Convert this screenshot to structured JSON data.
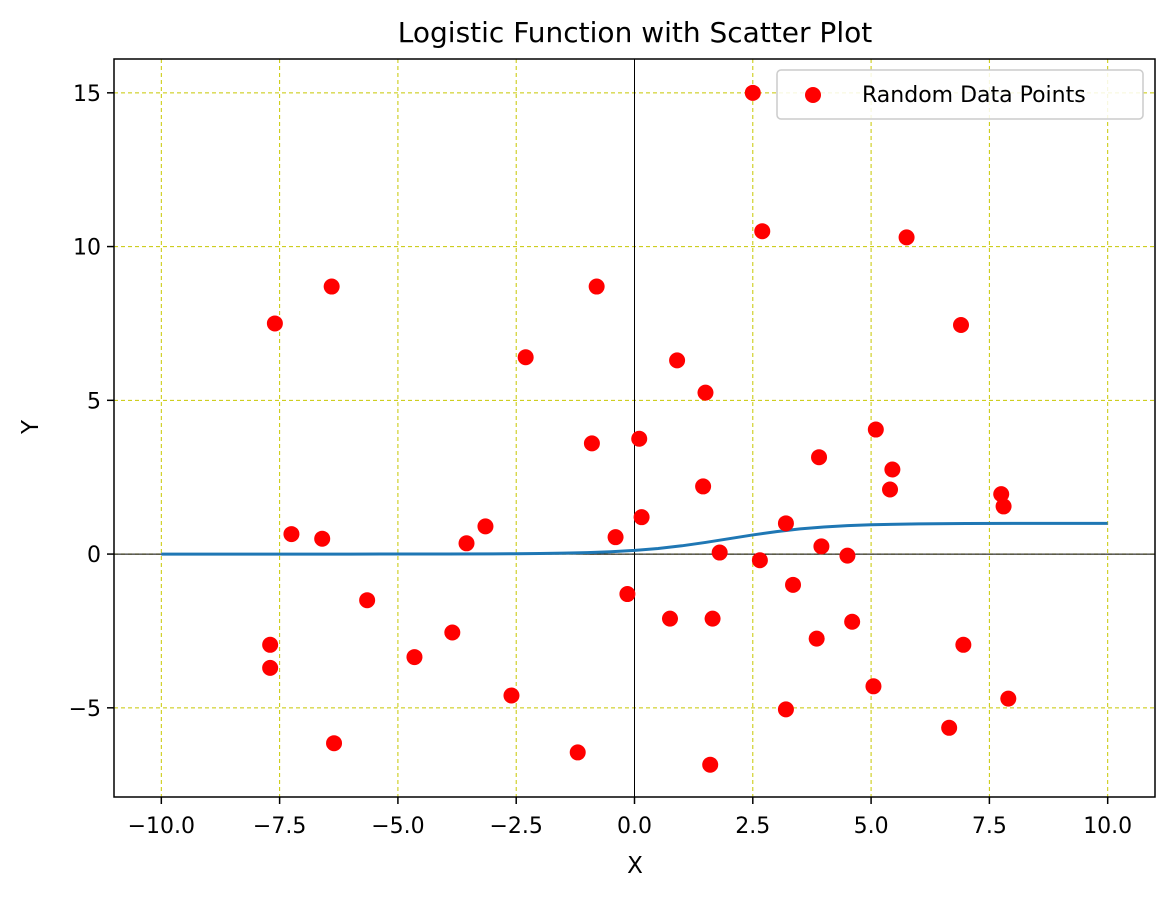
{
  "chart_data": {
    "type": "scatter",
    "title": "Logistic Function with Scatter Plot",
    "xlabel": "X",
    "ylabel": "Y",
    "xlim": [
      -11.0,
      11.0
    ],
    "ylim": [
      -7.9,
      16.1
    ],
    "xticks": [
      -10.0,
      -7.5,
      -5.0,
      -2.5,
      0.0,
      2.5,
      5.0,
      7.5,
      10.0
    ],
    "xtick_labels": [
      "−10.0",
      "−7.5",
      "−5.0",
      "−2.5",
      "0.0",
      "2.5",
      "5.0",
      "7.5",
      "10.0"
    ],
    "yticks": [
      -5,
      0,
      5,
      10,
      15
    ],
    "ytick_labels": [
      "−5",
      "0",
      "5",
      "10",
      "15"
    ],
    "grid": true,
    "grid_color": "#c8c800",
    "legend": {
      "position": "top-right",
      "entries": [
        "Random Data Points"
      ]
    },
    "series": [
      {
        "kind": "line",
        "function": "logistic",
        "x": [
          -10,
          -9,
          -8,
          -7,
          -6,
          -5,
          -4,
          -3,
          -2.5,
          -2,
          -1.5,
          -1,
          -0.5,
          0,
          0.5,
          1,
          1.5,
          2,
          2.5,
          3,
          3.5,
          4,
          4.5,
          5,
          6,
          7,
          8,
          9,
          10
        ],
        "y": [
          0.0,
          0.0,
          0.0,
          0.0,
          0.0,
          0.001,
          0.003,
          0.007,
          0.012,
          0.018,
          0.029,
          0.047,
          0.076,
          0.119,
          0.182,
          0.269,
          0.378,
          0.5,
          0.622,
          0.731,
          0.818,
          0.881,
          0.924,
          0.953,
          0.982,
          0.993,
          0.998,
          0.999,
          1.0
        ],
        "color": "#1f77b4"
      },
      {
        "kind": "scatter",
        "name": "Random Data Points",
        "color": "#ff0000",
        "points": [
          [
            -7.6,
            7.5
          ],
          [
            -6.4,
            8.7
          ],
          [
            -0.8,
            8.7
          ],
          [
            -2.3,
            6.4
          ],
          [
            -7.25,
            0.65
          ],
          [
            -6.6,
            0.5
          ],
          [
            -3.55,
            0.35
          ],
          [
            -3.15,
            0.9
          ],
          [
            -0.4,
            0.55
          ],
          [
            0.15,
            1.2
          ],
          [
            0.1,
            3.75
          ],
          [
            -0.9,
            3.6
          ],
          [
            -5.65,
            -1.5
          ],
          [
            -7.7,
            -2.95
          ],
          [
            -7.7,
            -3.7
          ],
          [
            -4.65,
            -3.35
          ],
          [
            -3.85,
            -2.55
          ],
          [
            -2.6,
            -4.6
          ],
          [
            -6.35,
            -6.15
          ],
          [
            -1.2,
            -6.45
          ],
          [
            -0.15,
            -1.3
          ],
          [
            0.75,
            -2.1
          ],
          [
            1.65,
            -2.1
          ],
          [
            1.8,
            0.05
          ],
          [
            0.9,
            6.3
          ],
          [
            1.5,
            5.25
          ],
          [
            1.45,
            2.2
          ],
          [
            2.5,
            15.0
          ],
          [
            2.7,
            10.5
          ],
          [
            5.75,
            10.3
          ],
          [
            6.9,
            7.45
          ],
          [
            5.1,
            4.05
          ],
          [
            3.9,
            3.15
          ],
          [
            5.45,
            2.75
          ],
          [
            5.4,
            2.1
          ],
          [
            7.75,
            1.95
          ],
          [
            7.8,
            1.55
          ],
          [
            3.2,
            1.0
          ],
          [
            3.95,
            0.25
          ],
          [
            4.5,
            -0.05
          ],
          [
            2.65,
            -0.2
          ],
          [
            3.35,
            -1.0
          ],
          [
            3.85,
            -2.75
          ],
          [
            4.6,
            -2.2
          ],
          [
            5.05,
            -4.3
          ],
          [
            3.2,
            -5.05
          ],
          [
            6.95,
            -2.95
          ],
          [
            7.9,
            -4.7
          ],
          [
            6.65,
            -5.65
          ],
          [
            1.6,
            -6.85
          ]
        ]
      }
    ]
  }
}
